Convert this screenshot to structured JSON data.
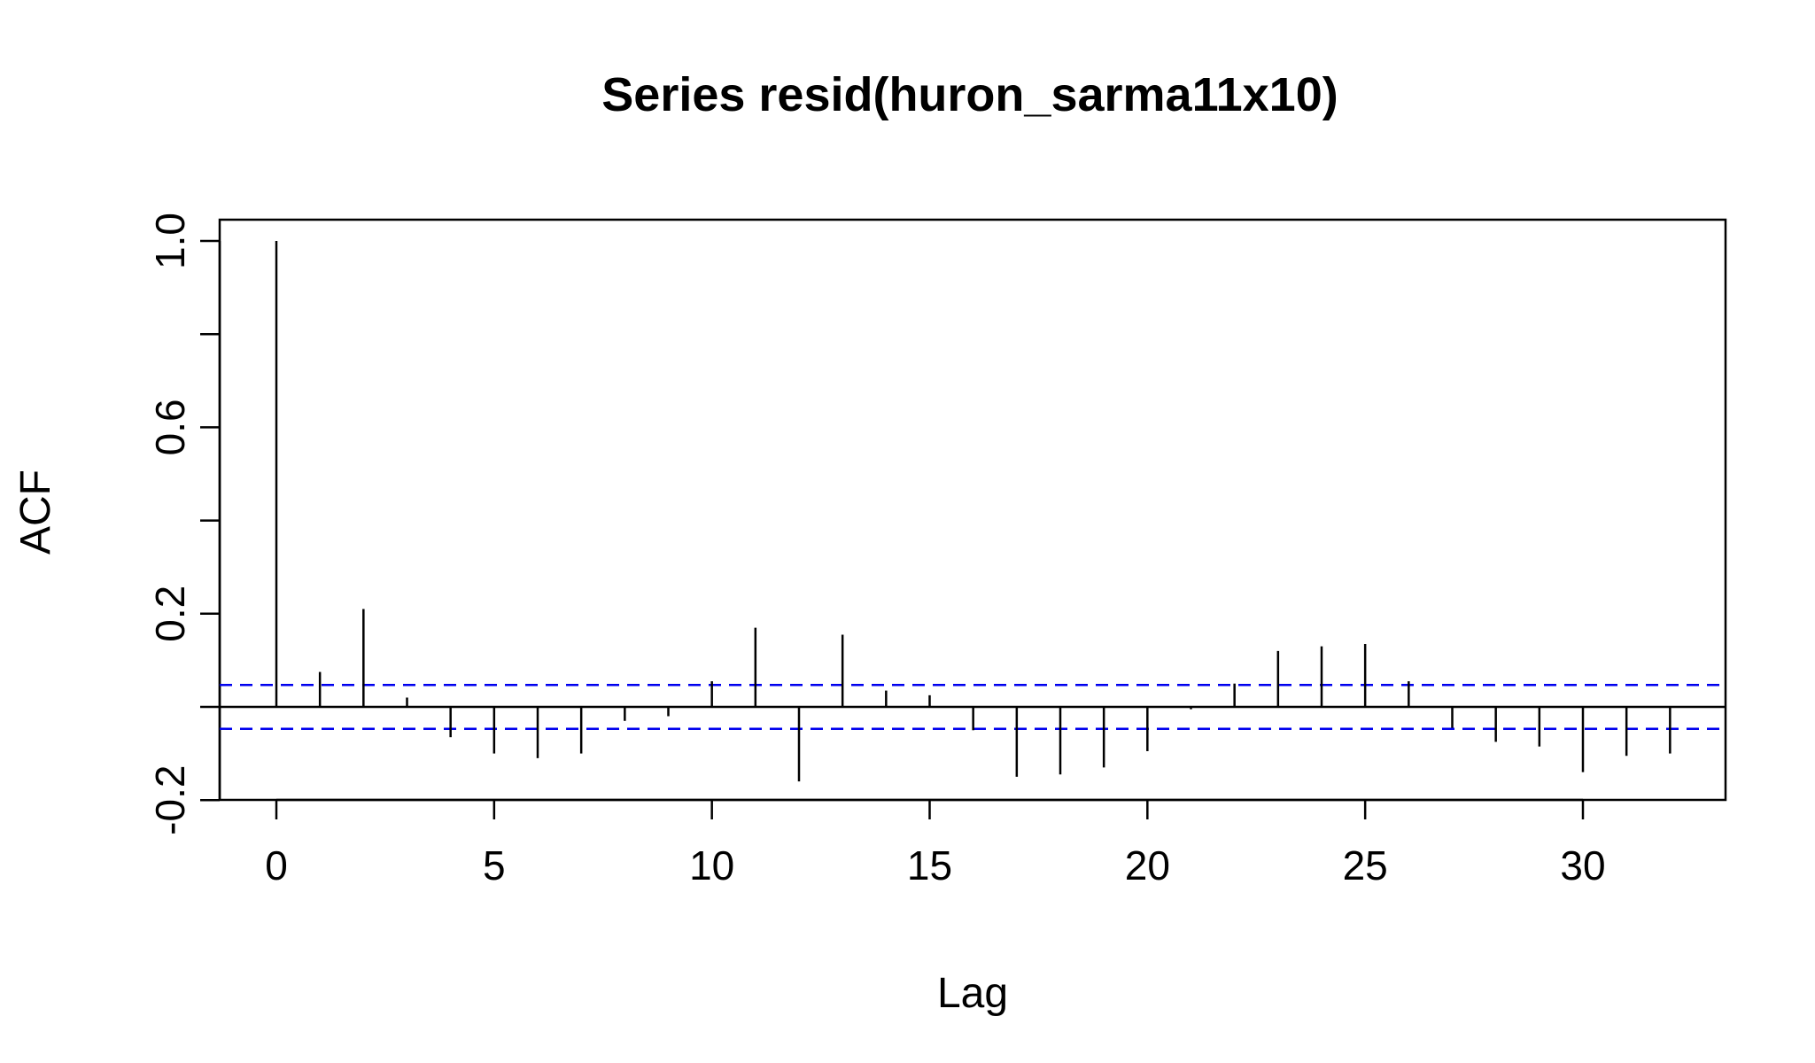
{
  "chart_data": {
    "type": "bar",
    "title": "Series  resid(huron_sarma11x10)",
    "xlabel": "Lag",
    "ylabel": "ACF",
    "xlim": [
      -1.3,
      33.3
    ],
    "ylim": [
      -0.2,
      1.05
    ],
    "x_ticks": [
      0,
      5,
      10,
      15,
      20,
      25,
      30
    ],
    "x_tick_labels": [
      "0",
      "5",
      "10",
      "15",
      "20",
      "25",
      "30"
    ],
    "y_ticks": [
      -0.2,
      0.0,
      0.2,
      0.4,
      0.6,
      0.8,
      1.0
    ],
    "y_tick_labels": [
      "-0.2",
      "",
      "0.2",
      "",
      "0.6",
      "",
      "1.0"
    ],
    "lags": [
      0,
      1,
      2,
      3,
      4,
      5,
      6,
      7,
      8,
      9,
      10,
      11,
      12,
      13,
      14,
      15,
      16,
      17,
      18,
      19,
      20,
      21,
      22,
      23,
      24,
      25,
      26,
      27,
      28,
      29,
      30,
      31,
      32
    ],
    "acf": [
      1.0,
      0.075,
      0.21,
      0.02,
      -0.065,
      -0.1,
      -0.11,
      -0.1,
      -0.03,
      -0.02,
      0.055,
      0.17,
      -0.16,
      0.155,
      0.035,
      0.025,
      -0.05,
      -0.15,
      -0.145,
      -0.13,
      -0.095,
      -0.005,
      0.05,
      0.12,
      0.13,
      0.135,
      0.055,
      -0.045,
      -0.075,
      -0.085,
      -0.14,
      -0.105,
      -0.1
    ],
    "confidence_bound": 0.047,
    "colors": {
      "bars": "#000000",
      "ci_lines": "#0000ee",
      "zero_line": "#000000"
    }
  }
}
